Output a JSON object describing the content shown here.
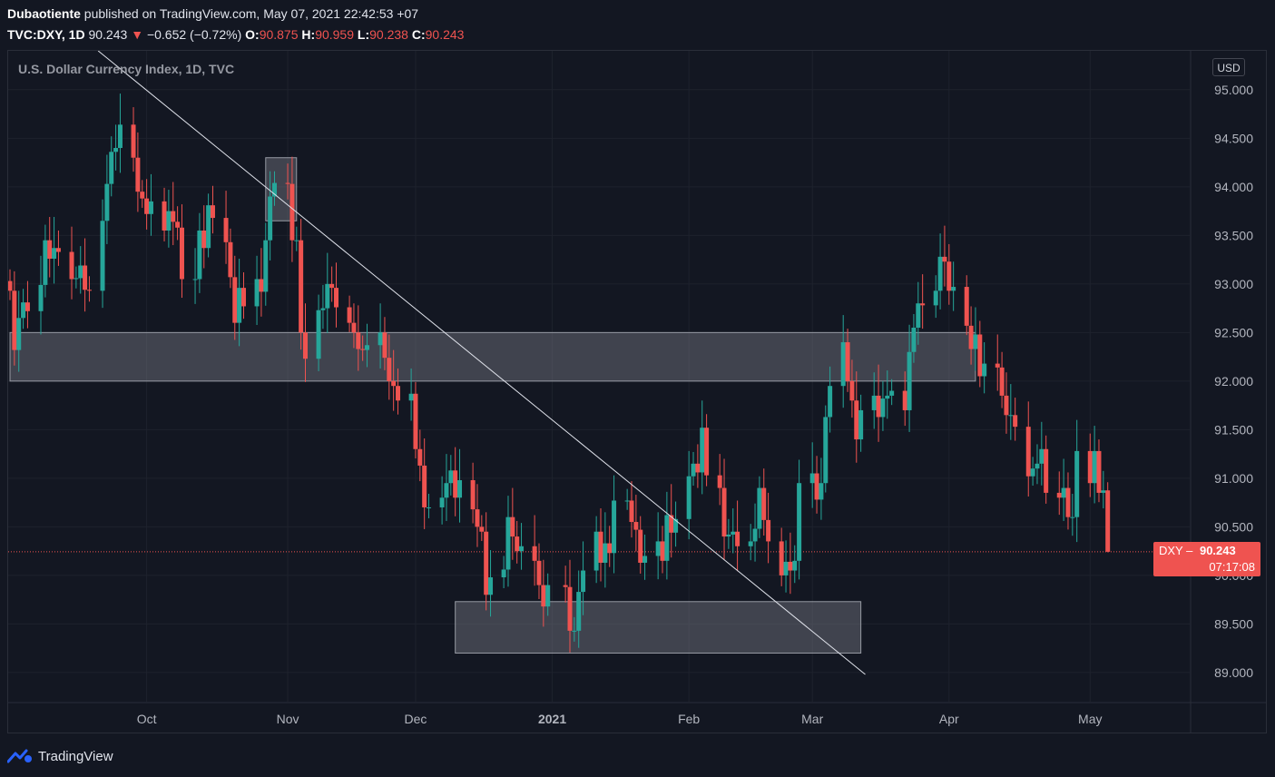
{
  "header": {
    "publisher": "Dubaotiente",
    "published_text": "published on TradingView.com, May 07, 2021 22:42:53 +07",
    "symbol": "TVC:DXY, 1D",
    "last": "90.243",
    "change": "−0.652 (−0.72%)",
    "open_label": "O:",
    "open": "90.875",
    "high_label": "H:",
    "high": "90.959",
    "low_label": "L:",
    "low": "90.238",
    "close_label": "C:",
    "close": "90.243"
  },
  "legend_title": "U.S. Dollar Currency Index, 1D, TVC",
  "currency_badge": "USD",
  "price_tag": {
    "symbol": "DXY",
    "value": "90.243",
    "countdown": "07:17:08"
  },
  "footer": {
    "brand": "TradingView"
  },
  "colors": {
    "background": "#131722",
    "up": "#26a69a",
    "down": "#ef5350",
    "grid": "#1e222d",
    "zone": "#787b86"
  },
  "chart_data": {
    "type": "candlestick",
    "y_range": [
      88.7,
      95.4
    ],
    "y_ticks": [
      "95.000",
      "94.500",
      "94.000",
      "93.500",
      "93.000",
      "92.500",
      "92.000",
      "91.500",
      "91.000",
      "90.500",
      "90.000",
      "89.500",
      "89.000"
    ],
    "x_ticks": [
      {
        "label": "Oct",
        "date": "2020-10-01",
        "bold": false
      },
      {
        "label": "Nov",
        "date": "2020-11-02",
        "bold": false
      },
      {
        "label": "Dec",
        "date": "2020-12-01",
        "bold": false
      },
      {
        "label": "2021",
        "date": "2021-01-01",
        "bold": true
      },
      {
        "label": "Feb",
        "date": "2021-02-01",
        "bold": false
      },
      {
        "label": "Mar",
        "date": "2021-03-01",
        "bold": false
      },
      {
        "label": "Apr",
        "date": "2021-04-01",
        "bold": false
      },
      {
        "label": "May",
        "date": "2021-05-03",
        "bold": false
      }
    ],
    "last_price": 90.243,
    "candles": [
      {
        "d": "2020-08-31",
        "c": 92.93
      },
      {
        "d": "2020-09-01",
        "c": 92.32
      },
      {
        "d": "2020-09-02",
        "c": 92.65
      },
      {
        "d": "2020-09-03",
        "c": 92.81
      },
      {
        "d": "2020-09-04",
        "c": 92.72
      },
      {
        "d": "2020-09-07",
        "c": 92.99
      },
      {
        "d": "2020-09-08",
        "c": 93.45
      },
      {
        "d": "2020-09-09",
        "c": 93.26
      },
      {
        "d": "2020-09-10",
        "c": 93.37
      },
      {
        "d": "2020-09-11",
        "c": 93.33
      },
      {
        "d": "2020-09-14",
        "c": 93.05
      },
      {
        "d": "2020-09-15",
        "c": 93.06
      },
      {
        "d": "2020-09-16",
        "c": 93.19
      },
      {
        "d": "2020-09-17",
        "c": 92.94
      },
      {
        "d": "2020-09-18",
        "c": 92.93
      },
      {
        "d": "2020-09-21",
        "c": 93.65
      },
      {
        "d": "2020-09-22",
        "c": 94.03
      },
      {
        "d": "2020-09-23",
        "c": 94.36
      },
      {
        "d": "2020-09-24",
        "c": 94.4
      },
      {
        "d": "2020-09-25",
        "c": 94.64
      },
      {
        "d": "2020-09-28",
        "c": 94.3
      },
      {
        "d": "2020-09-29",
        "c": 93.95
      },
      {
        "d": "2020-09-30",
        "c": 93.88
      },
      {
        "d": "2020-10-01",
        "c": 93.72
      },
      {
        "d": "2020-10-02",
        "c": 93.85
      },
      {
        "d": "2020-10-05",
        "c": 93.55
      },
      {
        "d": "2020-10-06",
        "c": 93.75
      },
      {
        "d": "2020-10-07",
        "c": 93.64
      },
      {
        "d": "2020-10-08",
        "c": 93.58
      },
      {
        "d": "2020-10-09",
        "c": 93.05
      },
      {
        "d": "2020-10-12",
        "c": 93.05
      },
      {
        "d": "2020-10-13",
        "c": 93.55
      },
      {
        "d": "2020-10-14",
        "c": 93.37
      },
      {
        "d": "2020-10-15",
        "c": 93.81
      },
      {
        "d": "2020-10-16",
        "c": 93.68
      },
      {
        "d": "2020-10-19",
        "c": 93.43
      },
      {
        "d": "2020-10-20",
        "c": 93.07
      },
      {
        "d": "2020-10-21",
        "c": 92.6
      },
      {
        "d": "2020-10-22",
        "c": 92.96
      },
      {
        "d": "2020-10-23",
        "c": 92.77
      },
      {
        "d": "2020-10-26",
        "c": 93.05
      },
      {
        "d": "2020-10-27",
        "c": 92.92
      },
      {
        "d": "2020-10-28",
        "c": 93.45
      },
      {
        "d": "2020-10-29",
        "c": 93.9
      },
      {
        "d": "2020-10-30",
        "c": 94.04
      },
      {
        "d": "2020-11-02",
        "c": 94.03
      },
      {
        "d": "2020-11-03",
        "c": 93.45
      },
      {
        "d": "2020-11-04",
        "c": 93.45
      },
      {
        "d": "2020-11-05",
        "c": 92.5
      },
      {
        "d": "2020-11-06",
        "c": 92.23
      },
      {
        "d": "2020-11-09",
        "c": 92.73
      },
      {
        "d": "2020-11-10",
        "c": 92.75
      },
      {
        "d": "2020-11-11",
        "c": 93.0
      },
      {
        "d": "2020-11-12",
        "c": 92.96
      },
      {
        "d": "2020-11-13",
        "c": 92.76
      },
      {
        "d": "2020-11-16",
        "c": 92.6
      },
      {
        "d": "2020-11-17",
        "c": 92.5
      },
      {
        "d": "2020-11-18",
        "c": 92.33
      },
      {
        "d": "2020-11-19",
        "c": 92.32
      },
      {
        "d": "2020-11-20",
        "c": 92.37
      },
      {
        "d": "2020-11-23",
        "c": 92.5
      },
      {
        "d": "2020-11-24",
        "c": 92.24
      },
      {
        "d": "2020-11-25",
        "c": 92.0
      },
      {
        "d": "2020-11-26",
        "c": 91.95
      },
      {
        "d": "2020-11-27",
        "c": 91.8
      },
      {
        "d": "2020-11-30",
        "c": 91.87
      },
      {
        "d": "2020-12-01",
        "c": 91.3
      },
      {
        "d": "2020-12-02",
        "c": 91.13
      },
      {
        "d": "2020-12-03",
        "c": 90.7
      },
      {
        "d": "2020-12-04",
        "c": 90.7
      },
      {
        "d": "2020-12-07",
        "c": 90.8
      },
      {
        "d": "2020-12-08",
        "c": 90.95
      },
      {
        "d": "2020-12-09",
        "c": 91.08
      },
      {
        "d": "2020-12-10",
        "c": 90.8
      },
      {
        "d": "2020-12-11",
        "c": 90.98
      },
      {
        "d": "2020-12-14",
        "c": 90.68
      },
      {
        "d": "2020-12-15",
        "c": 90.5
      },
      {
        "d": "2020-12-16",
        "c": 90.45
      },
      {
        "d": "2020-12-17",
        "c": 89.8
      },
      {
        "d": "2020-12-18",
        "c": 89.98
      },
      {
        "d": "2020-12-21",
        "c": 90.06
      },
      {
        "d": "2020-12-22",
        "c": 90.6
      },
      {
        "d": "2020-12-23",
        "c": 90.4
      },
      {
        "d": "2020-12-24",
        "c": 90.25
      },
      {
        "d": "2020-12-25",
        "c": 90.3
      },
      {
        "d": "2020-12-28",
        "c": 90.15
      },
      {
        "d": "2020-12-29",
        "c": 89.9
      },
      {
        "d": "2020-12-30",
        "c": 89.68
      },
      {
        "d": "2020-12-31",
        "c": 89.9
      },
      {
        "d": "2021-01-04",
        "c": 89.88
      },
      {
        "d": "2021-01-05",
        "c": 89.43
      },
      {
        "d": "2021-01-06",
        "c": 89.43
      },
      {
        "d": "2021-01-07",
        "c": 89.83
      },
      {
        "d": "2021-01-08",
        "c": 90.05
      },
      {
        "d": "2021-01-11",
        "c": 90.45
      },
      {
        "d": "2021-01-12",
        "c": 90.13
      },
      {
        "d": "2021-01-13",
        "c": 90.33
      },
      {
        "d": "2021-01-14",
        "c": 90.23
      },
      {
        "d": "2021-01-15",
        "c": 90.77
      },
      {
        "d": "2021-01-18",
        "c": 90.77
      },
      {
        "d": "2021-01-19",
        "c": 90.55
      },
      {
        "d": "2021-01-20",
        "c": 90.47
      },
      {
        "d": "2021-01-21",
        "c": 90.13
      },
      {
        "d": "2021-01-22",
        "c": 90.2
      },
      {
        "d": "2021-01-25",
        "c": 90.35
      },
      {
        "d": "2021-01-26",
        "c": 90.15
      },
      {
        "d": "2021-01-27",
        "c": 90.62
      },
      {
        "d": "2021-01-28",
        "c": 90.44
      },
      {
        "d": "2021-01-29",
        "c": 90.58
      },
      {
        "d": "2021-02-01",
        "c": 91.02
      },
      {
        "d": "2021-02-02",
        "c": 91.15
      },
      {
        "d": "2021-02-03",
        "c": 91.06
      },
      {
        "d": "2021-02-04",
        "c": 91.52
      },
      {
        "d": "2021-02-05",
        "c": 91.03
      },
      {
        "d": "2021-02-08",
        "c": 90.9
      },
      {
        "d": "2021-02-09",
        "c": 90.4
      },
      {
        "d": "2021-02-10",
        "c": 90.42
      },
      {
        "d": "2021-02-11",
        "c": 90.45
      },
      {
        "d": "2021-02-12",
        "c": 90.3
      },
      {
        "d": "2021-02-15",
        "c": 90.35
      },
      {
        "d": "2021-02-16",
        "c": 90.48
      },
      {
        "d": "2021-02-17",
        "c": 90.9
      },
      {
        "d": "2021-02-18",
        "c": 90.57
      },
      {
        "d": "2021-02-19",
        "c": 90.35
      },
      {
        "d": "2021-02-22",
        "c": 90.0
      },
      {
        "d": "2021-02-23",
        "c": 90.14
      },
      {
        "d": "2021-02-24",
        "c": 90.05
      },
      {
        "d": "2021-02-25",
        "c": 90.15
      },
      {
        "d": "2021-02-26",
        "c": 90.95
      },
      {
        "d": "2021-03-01",
        "c": 91.05
      },
      {
        "d": "2021-03-02",
        "c": 90.78
      },
      {
        "d": "2021-03-03",
        "c": 90.95
      },
      {
        "d": "2021-03-04",
        "c": 91.63
      },
      {
        "d": "2021-03-05",
        "c": 91.95
      },
      {
        "d": "2021-03-08",
        "c": 92.4
      },
      {
        "d": "2021-03-09",
        "c": 92.0
      },
      {
        "d": "2021-03-10",
        "c": 91.8
      },
      {
        "d": "2021-03-11",
        "c": 91.4
      },
      {
        "d": "2021-03-12",
        "c": 91.7
      },
      {
        "d": "2021-03-15",
        "c": 91.85
      },
      {
        "d": "2021-03-16",
        "c": 91.63
      },
      {
        "d": "2021-03-17",
        "c": 91.82
      },
      {
        "d": "2021-03-18",
        "c": 91.85
      },
      {
        "d": "2021-03-19",
        "c": 91.9
      },
      {
        "d": "2021-03-22",
        "c": 91.7
      },
      {
        "d": "2021-03-23",
        "c": 92.3
      },
      {
        "d": "2021-03-24",
        "c": 92.55
      },
      {
        "d": "2021-03-25",
        "c": 92.8
      },
      {
        "d": "2021-03-26",
        "c": 92.78
      },
      {
        "d": "2021-03-29",
        "c": 92.93
      },
      {
        "d": "2021-03-30",
        "c": 93.28
      },
      {
        "d": "2021-03-31",
        "c": 93.23
      },
      {
        "d": "2021-04-01",
        "c": 92.93
      },
      {
        "d": "2021-04-02",
        "c": 92.97
      },
      {
        "d": "2021-04-05",
        "c": 92.57
      },
      {
        "d": "2021-04-06",
        "c": 92.33
      },
      {
        "d": "2021-04-07",
        "c": 92.48
      },
      {
        "d": "2021-04-08",
        "c": 92.05
      },
      {
        "d": "2021-04-09",
        "c": 92.18
      },
      {
        "d": "2021-04-12",
        "c": 92.14
      },
      {
        "d": "2021-04-13",
        "c": 91.85
      },
      {
        "d": "2021-04-14",
        "c": 91.65
      },
      {
        "d": "2021-04-15",
        "c": 91.65
      },
      {
        "d": "2021-04-16",
        "c": 91.53
      },
      {
        "d": "2021-04-19",
        "c": 91.02
      },
      {
        "d": "2021-04-20",
        "c": 91.1
      },
      {
        "d": "2021-04-21",
        "c": 91.15
      },
      {
        "d": "2021-04-22",
        "c": 91.3
      },
      {
        "d": "2021-04-23",
        "c": 90.85
      },
      {
        "d": "2021-04-26",
        "c": 90.8
      },
      {
        "d": "2021-04-27",
        "c": 90.9
      },
      {
        "d": "2021-04-28",
        "c": 90.6
      },
      {
        "d": "2021-04-29",
        "c": 90.6
      },
      {
        "d": "2021-04-30",
        "c": 91.28
      },
      {
        "d": "2021-05-03",
        "c": 90.95
      },
      {
        "d": "2021-05-04",
        "c": 91.28
      },
      {
        "d": "2021-05-05",
        "c": 90.85
      },
      {
        "d": "2021-05-06",
        "c": 90.875
      },
      {
        "d": "2021-05-07",
        "c": 90.243,
        "o": 90.875,
        "h": 90.959,
        "l": 90.238
      }
    ],
    "zones": [
      {
        "from": "2020-08-31",
        "to": "2021-04-07",
        "top": 92.5,
        "bottom": 92.0
      },
      {
        "from": "2020-12-10",
        "to": "2021-03-12",
        "top": 89.73,
        "bottom": 89.2
      },
      {
        "from": "2020-10-28",
        "to": "2020-11-04",
        "top": 94.3,
        "bottom": 93.65
      }
    ],
    "trendline": {
      "from": {
        "d": "2020-09-20",
        "v": 95.4
      },
      "to": {
        "d": "2021-03-13",
        "v": 88.98
      }
    }
  }
}
